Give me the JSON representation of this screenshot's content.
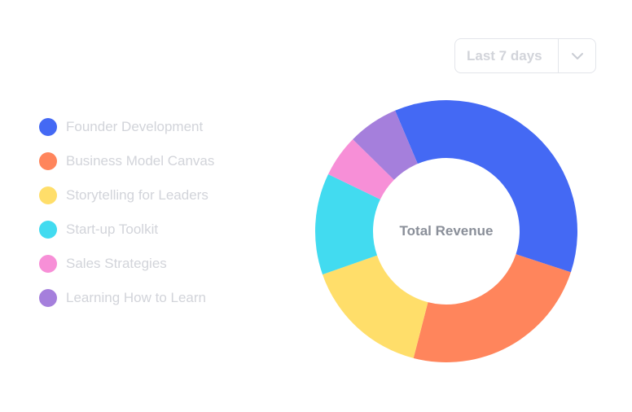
{
  "filter": {
    "range_label": "Last 7 days",
    "toggle_icon": "chevron-down-icon"
  },
  "colors": {
    "border": "#e3e5ea",
    "muted_text": "#d2d4da",
    "center_text": "#8a8f99"
  },
  "chart_data": {
    "type": "pie",
    "subtype": "donut",
    "center_label": "Total Revenue",
    "categories": [
      "Founder Development",
      "Business Model Canvas",
      "Storytelling for Leaders",
      "Start-up Toolkit",
      "Sales Strategies",
      "Learning How to Learn"
    ],
    "values": [
      35,
      23,
      15,
      12,
      5,
      6
    ],
    "colors": [
      "#4469F4",
      "#FF855C",
      "#FFDE6A",
      "#42DBF0",
      "#F78FD7",
      "#A57FDC"
    ],
    "legend_position": "left"
  }
}
